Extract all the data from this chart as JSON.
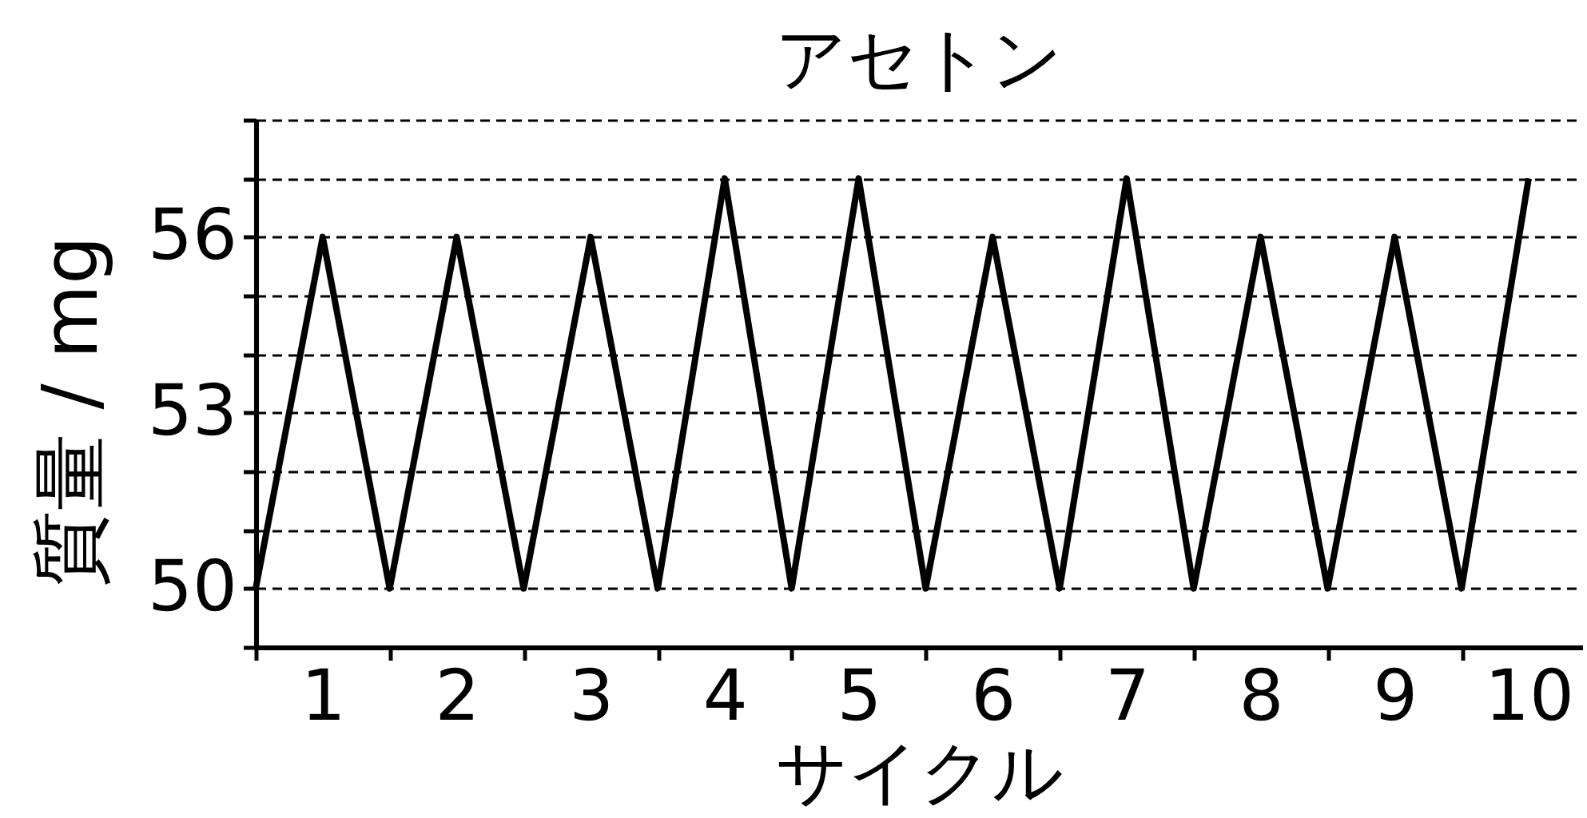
{
  "chart_data": {
    "type": "line",
    "title": "アセトン",
    "xlabel": "サイクル",
    "ylabel": "質量 / mg",
    "x": [
      0.5,
      1,
      1.5,
      2,
      2.5,
      3,
      3.5,
      4,
      4.5,
      5,
      5.5,
      6,
      6.5,
      7,
      7.5,
      8,
      8.5,
      9,
      9.5,
      10
    ],
    "series": [
      {
        "color": "#000000",
        "values": [
          50,
          56,
          50,
          56,
          50,
          56,
          50,
          57,
          50,
          57,
          50,
          56,
          50,
          57,
          50,
          56,
          50,
          56,
          50,
          57
        ]
      }
    ],
    "xlim": [
      0.5,
      10.4
    ],
    "xticks": [
      {
        "value": 0.5,
        "label": null
      },
      1,
      {
        "value": 1.5,
        "label": null
      },
      2,
      {
        "value": 2.5,
        "label": null
      },
      3,
      {
        "value": 3.5,
        "label": null
      },
      4,
      {
        "value": 4.5,
        "label": null
      },
      5,
      {
        "value": 5.5,
        "label": null
      },
      6,
      {
        "value": 6.5,
        "label": null
      },
      7,
      {
        "value": 7.5,
        "label": null
      },
      8,
      {
        "value": 8.5,
        "label": null
      },
      9,
      {
        "value": 9.5,
        "label": null
      },
      10
    ],
    "ylim": [
      49,
      58
    ],
    "yticks": [
      {
        "value": 49,
        "label": null
      },
      50,
      {
        "value": 51,
        "label": null
      },
      {
        "value": 52,
        "label": null
      },
      53,
      {
        "value": 54,
        "label": null
      },
      {
        "value": 55,
        "label": null
      },
      56,
      {
        "value": 57,
        "label": null
      },
      {
        "value": 58,
        "label": null
      }
    ],
    "grid": "y",
    "line_style": "solid"
  }
}
